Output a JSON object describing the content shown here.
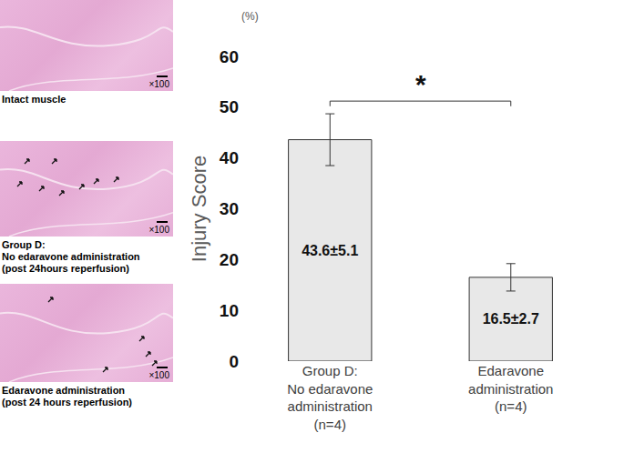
{
  "chart_data": {
    "type": "bar",
    "categories": [
      "Group D:\nNo edaravone\nadministration\n(n=4)",
      "Edaravone\nadministration\n(n=4)"
    ],
    "values": [
      43.6,
      16.5
    ],
    "errors": [
      5.1,
      2.7
    ],
    "value_labels": [
      "43.6±5.1",
      "16.5±2.7"
    ],
    "data_labels": true,
    "color": "#e8e8e8",
    "y_label": "Injury Score",
    "annotations": [
      "(%)",
      "*"
    ],
    "ylim": [
      0,
      60
    ],
    "yticks": [
      0,
      10,
      20,
      30,
      40,
      50,
      60
    ],
    "grid": false
  },
  "images": [
    {
      "caption": "Intact muscle",
      "magnification": "×100"
    },
    {
      "caption": "Group D:\n  No edaravone administration\n  (post 24hours reperfusion)",
      "magnification": "×100"
    },
    {
      "caption": "Edaravone administration\n(post 24 hours reperfusion)",
      "magnification": "×100"
    }
  ]
}
